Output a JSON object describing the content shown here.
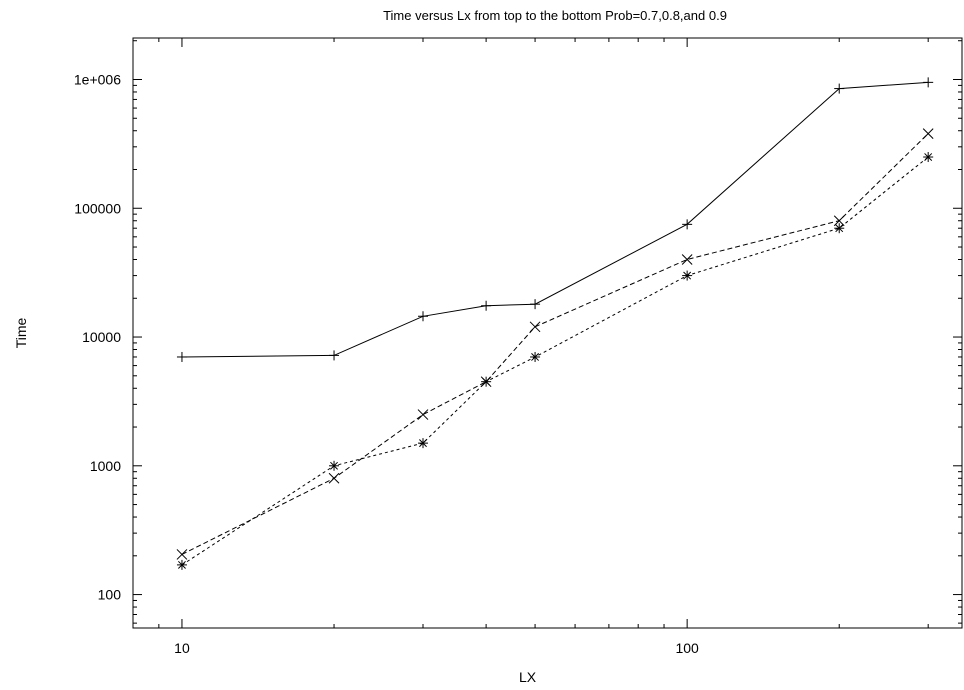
{
  "chart_data": {
    "type": "line",
    "title": "Time versus Lx from top to the bottom Prob=0.7,0.8,and 0.9",
    "xlabel": "LX",
    "ylabel": "Time",
    "xscale": "log",
    "yscale": "log",
    "xlim": [
      8,
      350
    ],
    "ylim": [
      55,
      2100000
    ],
    "x_ticks": [
      {
        "value": 10,
        "label": "10"
      },
      {
        "value": 100,
        "label": "100"
      }
    ],
    "y_ticks": [
      {
        "value": 100,
        "label": "100"
      },
      {
        "value": 1000,
        "label": "1000"
      },
      {
        "value": 10000,
        "label": "10000"
      },
      {
        "value": 100000,
        "label": "100000"
      },
      {
        "value": 1000000,
        "label": "1e+006"
      }
    ],
    "grid": false,
    "series": [
      {
        "marker": "plus",
        "dash": "solid",
        "x": [
          10,
          20,
          30,
          40,
          50,
          100,
          200,
          300
        ],
        "y": [
          7000,
          7200,
          14500,
          17500,
          18000,
          75000,
          850000,
          950000
        ]
      },
      {
        "marker": "cross",
        "dash": "dashed",
        "x": [
          10,
          20,
          30,
          40,
          50,
          100,
          200,
          300
        ],
        "y": [
          205,
          800,
          2500,
          4500,
          12000,
          40000,
          80000,
          380000
        ]
      },
      {
        "marker": "star",
        "dash": "dotted",
        "x": [
          10,
          20,
          30,
          40,
          50,
          100,
          200,
          300
        ],
        "y": [
          170,
          1000,
          1500,
          4500,
          7000,
          30000,
          70000,
          250000
        ]
      }
    ]
  }
}
